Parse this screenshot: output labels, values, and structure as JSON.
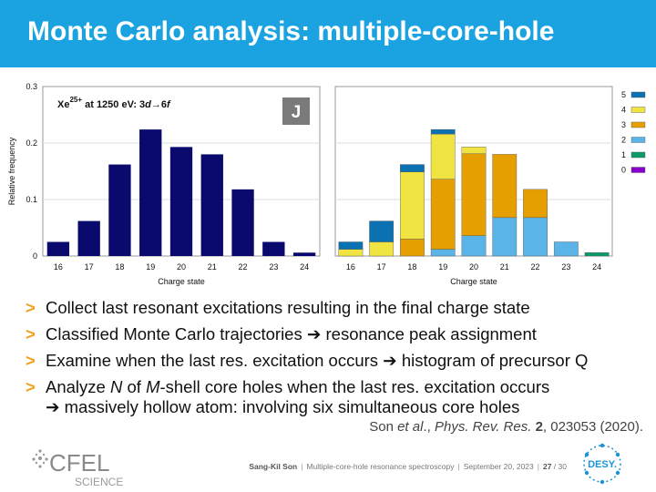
{
  "header": {
    "title": "Monte Carlo analysis: multiple-core-hole"
  },
  "chart_data": [
    {
      "type": "bar",
      "annotation": {
        "base": "Xe",
        "superscript": "25+",
        "rest": " at 1250 eV: 3",
        "italic_from": "d",
        "arrow": "→",
        "number": "6",
        "italic_to": "f"
      },
      "badge": "J",
      "xlabel": "Charge state",
      "ylabel": "Relative frequency",
      "ylim": [
        0,
        0.3
      ],
      "yticks": [
        "0",
        "0.1",
        "0.2",
        "0.3"
      ],
      "categories": [
        "16",
        "17",
        "18",
        "19",
        "20",
        "21",
        "22",
        "23",
        "24"
      ],
      "values": [
        0.025,
        0.062,
        0.162,
        0.224,
        0.193,
        0.18,
        0.118,
        0.025,
        0.006
      ],
      "color": "#0a0a6e",
      "grid": "horizontal"
    },
    {
      "type": "bar",
      "stacked": true,
      "xlabel": "Charge state",
      "ylim": [
        0,
        0.3
      ],
      "categories": [
        "16",
        "17",
        "18",
        "19",
        "20",
        "21",
        "22",
        "23",
        "24"
      ],
      "legend_position": "right",
      "series": [
        {
          "name": "0",
          "color": "#8800cc",
          "values": [
            0,
            0,
            0,
            0,
            0,
            0,
            0,
            0,
            0
          ]
        },
        {
          "name": "1",
          "color": "#0a9a66",
          "values": [
            0,
            0,
            0,
            0,
            0,
            0,
            0,
            0,
            0.006
          ]
        },
        {
          "name": "2",
          "color": "#5ab4e8",
          "values": [
            0,
            0,
            0,
            0.012,
            0.036,
            0.068,
            0.068,
            0.025,
            0
          ]
        },
        {
          "name": "3",
          "color": "#e69f00",
          "values": [
            0,
            0,
            0.03,
            0.124,
            0.145,
            0.112,
            0.05,
            0,
            0
          ]
        },
        {
          "name": "4",
          "color": "#f0e442",
          "values": [
            0.012,
            0.025,
            0.119,
            0.08,
            0.012,
            0,
            0,
            0,
            0
          ]
        },
        {
          "name": "5",
          "color": "#0a72b2",
          "values": [
            0.013,
            0.037,
            0.013,
            0.008,
            0,
            0,
            0,
            0,
            0
          ]
        }
      ]
    }
  ],
  "bullets": [
    {
      "marker": ">",
      "text": "Collect last resonant excitations resulting in the final charge state"
    },
    {
      "marker": ">",
      "text": "Classified Monte Carlo trajectories ➔ resonance peak assignment"
    },
    {
      "marker": ">",
      "text": "Examine when the last res. excitation occurs ➔ histogram of precursor Q"
    },
    {
      "marker": ">",
      "parts": [
        "Analyze ",
        "N",
        " of ",
        "M",
        "-shell core holes when the last res. excitation occurs"
      ],
      "line2": "➔ massively hollow atom: involving six simultaneous core holes"
    }
  ],
  "citation": {
    "author": "Son ",
    "etal": "et al",
    "sep": "., ",
    "journal": "Phys. Rev. Res.",
    "space": " ",
    "volume": "2",
    "rest": ", 023053 (2020)."
  },
  "footer": {
    "presenter": "Sang-Kil Son",
    "talk": "Multiple-core-hole resonance spectroscopy",
    "date": "September 20, 2023",
    "page": "27",
    "total": "30",
    "page_sep": " / ",
    "divider": "|",
    "cfel_logo_text": "CFEL",
    "cfel_logo_subtext": "SCIENCE",
    "desy_logo_text": "DESY."
  }
}
